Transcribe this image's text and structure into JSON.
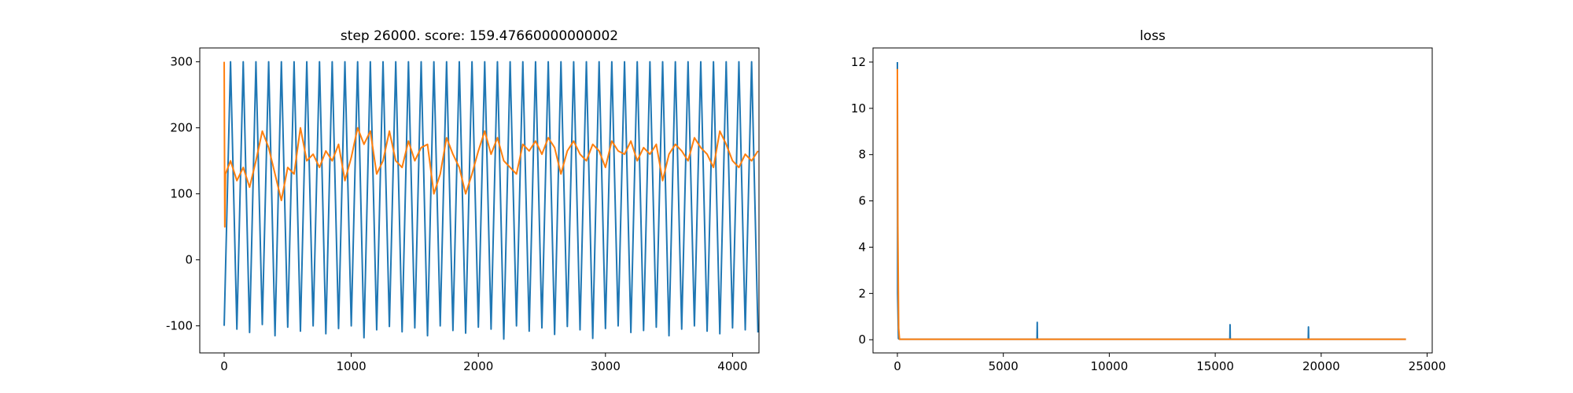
{
  "chart_data": [
    {
      "type": "line",
      "title": "step 26000. score: 159.47660000000002",
      "xlim": [
        -192,
        4208
      ],
      "ylim": [
        -141,
        321
      ],
      "xticks": [
        0,
        1000,
        2000,
        3000,
        4000
      ],
      "yticks": [
        -100,
        0,
        100,
        200,
        300
      ],
      "series": [
        {
          "color": "#1f77b4",
          "x": [
            0,
            50,
            100,
            150,
            200,
            250,
            300,
            350,
            400,
            450,
            500,
            550,
            600,
            650,
            700,
            750,
            800,
            850,
            900,
            950,
            1000,
            1050,
            1100,
            1150,
            1200,
            1250,
            1300,
            1350,
            1400,
            1450,
            1500,
            1550,
            1600,
            1650,
            1700,
            1750,
            1800,
            1850,
            1900,
            1950,
            2000,
            2050,
            2100,
            2150,
            2200,
            2250,
            2300,
            2350,
            2400,
            2450,
            2500,
            2550,
            2600,
            2650,
            2700,
            2750,
            2800,
            2850,
            2900,
            2950,
            3000,
            3050,
            3100,
            3150,
            3200,
            3250,
            3300,
            3350,
            3400,
            3450,
            3500,
            3550,
            3600,
            3650,
            3700,
            3750,
            3800,
            3850,
            3900,
            3950,
            4000,
            4050,
            4100,
            4150,
            4200
          ],
          "values": [
            -100,
            300,
            -105,
            300,
            -110,
            300,
            -98,
            300,
            -115,
            300,
            -102,
            300,
            -108,
            300,
            -100,
            300,
            -112,
            300,
            -104,
            300,
            -100,
            300,
            -118,
            300,
            -106,
            300,
            -101,
            300,
            -109,
            300,
            -103,
            300,
            -115,
            300,
            -100,
            300,
            -107,
            300,
            -111,
            300,
            -102,
            300,
            -105,
            300,
            -120,
            300,
            -100,
            300,
            -108,
            300,
            -103,
            300,
            -113,
            300,
            -101,
            300,
            -106,
            300,
            -119,
            300,
            -104,
            300,
            -100,
            300,
            -110,
            300,
            -107,
            300,
            -102,
            300,
            -115,
            300,
            -105,
            300,
            -100,
            300,
            -108,
            300,
            -112,
            300,
            -103,
            300,
            -106,
            300,
            -110
          ]
        },
        {
          "color": "#ff7f0e",
          "x": [
            0,
            5,
            10,
            50,
            100,
            150,
            200,
            250,
            300,
            350,
            400,
            450,
            500,
            550,
            600,
            650,
            700,
            750,
            800,
            850,
            900,
            950,
            1000,
            1050,
            1100,
            1150,
            1200,
            1250,
            1300,
            1350,
            1400,
            1450,
            1500,
            1550,
            1600,
            1650,
            1700,
            1750,
            1800,
            1850,
            1900,
            1950,
            2000,
            2050,
            2100,
            2150,
            2200,
            2250,
            2300,
            2350,
            2400,
            2450,
            2500,
            2550,
            2600,
            2650,
            2700,
            2750,
            2800,
            2850,
            2900,
            2950,
            3000,
            3050,
            3100,
            3150,
            3200,
            3250,
            3300,
            3350,
            3400,
            3450,
            3500,
            3550,
            3600,
            3650,
            3700,
            3750,
            3800,
            3850,
            3900,
            3950,
            4000,
            4050,
            4100,
            4150,
            4200
          ],
          "values": [
            300,
            50,
            130,
            150,
            120,
            140,
            110,
            150,
            195,
            170,
            130,
            90,
            140,
            130,
            200,
            150,
            160,
            140,
            165,
            150,
            175,
            120,
            155,
            200,
            175,
            195,
            130,
            150,
            195,
            150,
            140,
            180,
            150,
            170,
            175,
            100,
            130,
            185,
            160,
            140,
            100,
            130,
            165,
            195,
            160,
            185,
            150,
            140,
            130,
            175,
            165,
            180,
            160,
            185,
            170,
            130,
            165,
            180,
            160,
            150,
            175,
            165,
            140,
            180,
            165,
            160,
            180,
            150,
            170,
            160,
            175,
            120,
            160,
            175,
            165,
            150,
            185,
            170,
            160,
            140,
            195,
            175,
            150,
            140,
            160,
            150,
            165
          ]
        }
      ]
    },
    {
      "type": "line",
      "title": "loss",
      "xlim": [
        -1150,
        25240
      ],
      "ylim": [
        -0.57,
        12.61
      ],
      "xticks": [
        0,
        5000,
        10000,
        15000,
        20000,
        25000
      ],
      "yticks": [
        0,
        2,
        4,
        6,
        8,
        10,
        12
      ],
      "series": [
        {
          "color": "#1f77b4",
          "x": [
            0,
            10,
            50,
            100,
            6590,
            6600,
            6610,
            15690,
            15700,
            15710,
            19390,
            19400,
            19410,
            24000
          ],
          "values": [
            12,
            2,
            0.05,
            0.02,
            0.02,
            0.75,
            0.02,
            0.02,
            0.65,
            0.02,
            0.02,
            0.55,
            0.02,
            0.02
          ]
        },
        {
          "color": "#ff7f0e",
          "x": [
            0,
            20,
            60,
            100,
            24000
          ],
          "values": [
            11.7,
            5,
            0.5,
            0.02,
            0.02
          ]
        }
      ]
    }
  ]
}
